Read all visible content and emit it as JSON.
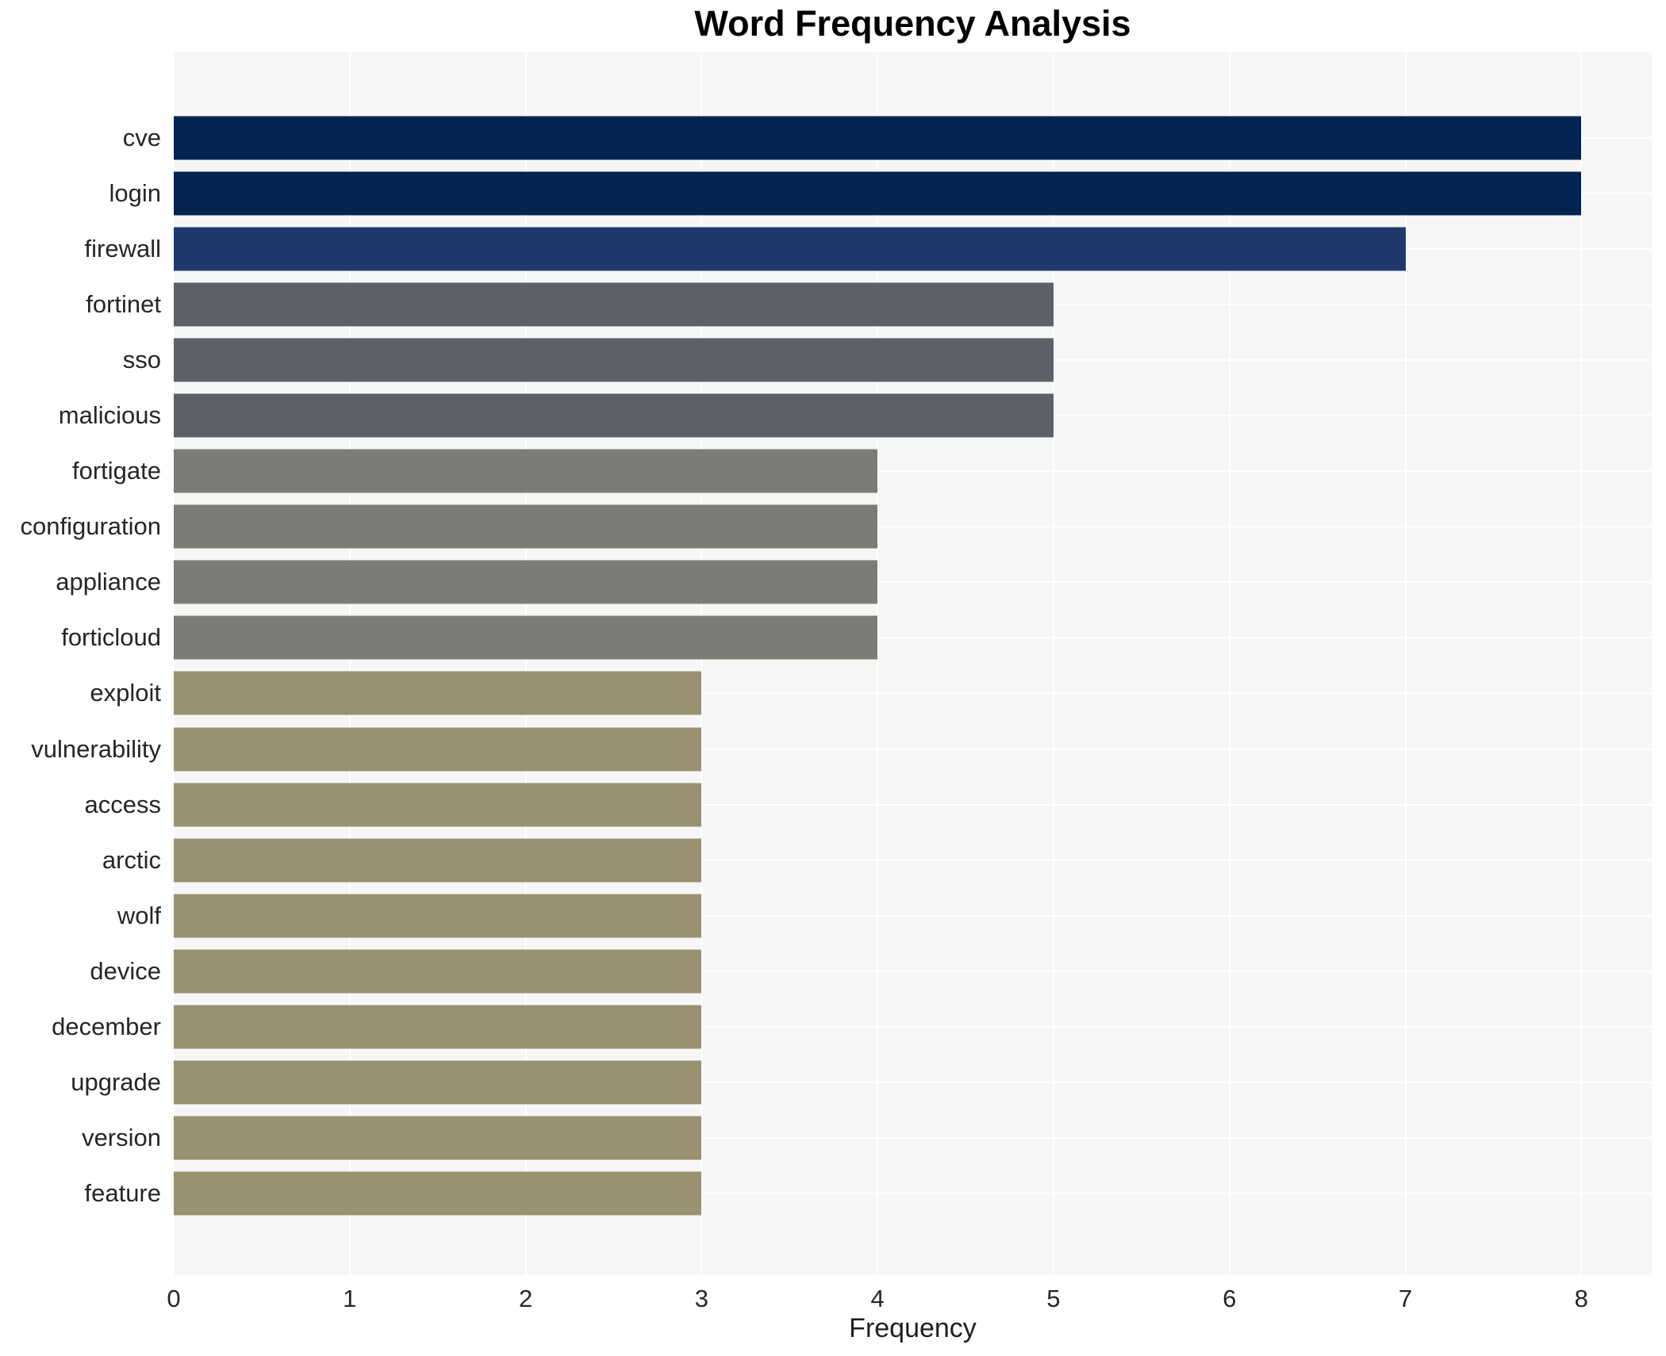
{
  "figure": {
    "title": "Word Frequency Analysis",
    "xlabel": "Frequency"
  },
  "chart_data": {
    "type": "bar",
    "orientation": "horizontal",
    "title": "Word Frequency Analysis",
    "xlabel": "Frequency",
    "ylabel": "",
    "categories": [
      "cve",
      "login",
      "firewall",
      "fortinet",
      "sso",
      "malicious",
      "fortigate",
      "configuration",
      "appliance",
      "forticloud",
      "exploit",
      "vulnerability",
      "access",
      "arctic",
      "wolf",
      "device",
      "december",
      "upgrade",
      "version",
      "feature"
    ],
    "values": [
      8,
      8,
      7,
      5,
      5,
      5,
      4,
      4,
      4,
      4,
      3,
      3,
      3,
      3,
      3,
      3,
      3,
      3,
      3,
      3
    ],
    "bar_colors": [
      "#032350",
      "#032350",
      "#1e3a6d",
      "#5d6069",
      "#5d6069",
      "#5d6069",
      "#7c7b75",
      "#7c7b75",
      "#7c7b75",
      "#7c7b75",
      "#99916f",
      "#99916f",
      "#99916f",
      "#99916f",
      "#99916f",
      "#99916f",
      "#99916f",
      "#99916f",
      "#99916f",
      "#99916f"
    ],
    "xticks": [
      0,
      1,
      2,
      3,
      4,
      5,
      6,
      7,
      8
    ],
    "xlim": [
      0,
      8.4
    ],
    "grid": true,
    "legend_position": "none"
  },
  "style": {
    "figure_background": "#ffffff",
    "plot_background": "#f6f6f7",
    "grid_color": "#ffffff",
    "text_color": "#262626",
    "title_color": "#000000"
  }
}
